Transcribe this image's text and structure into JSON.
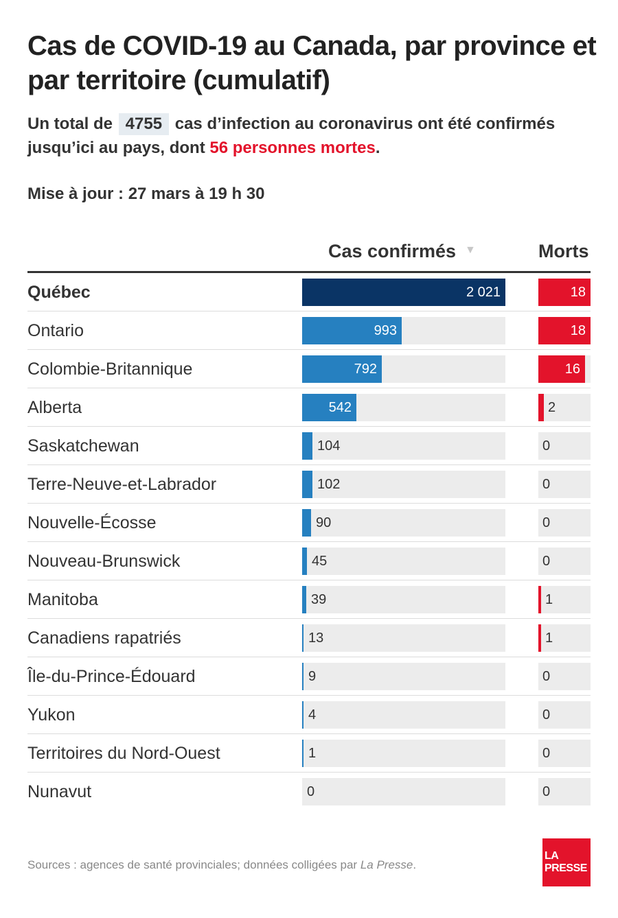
{
  "header": {
    "title": "Cas de COVID-19 au Canada, par province et par territoire (cumulatif)",
    "summary_prefix": "Un total de",
    "summary_total": "4755",
    "summary_middle": "cas d’infection au coronavirus ont été confirmés jusqu’ici au pays, dont",
    "summary_deaths": "56 personnes mortes",
    "summary_suffix": ".",
    "updated": "Mise à jour : 27 mars à 19 h 30"
  },
  "columns": {
    "cases": "Cas confirmés",
    "deaths": "Morts",
    "sort_indicator": "▼"
  },
  "footer": {
    "source_prefix": "Sources : agences de santé provinciales; données colligées par",
    "source_publisher": "La Presse",
    "source_suffix": ".",
    "logo_line1": "LA",
    "logo_line2": "PRESSE"
  },
  "colors": {
    "highlight_bar": "#0a3465",
    "cases_bar": "#2680c0",
    "deaths_bar": "#e3132b",
    "track": "#ececec"
  },
  "chart_data": {
    "type": "bar",
    "orientation": "horizontal",
    "title": "Cas de COVID-19 au Canada, par province et par territoire (cumulatif)",
    "categories": [
      "Québec",
      "Ontario",
      "Colombie-Britannique",
      "Alberta",
      "Saskatchewan",
      "Terre-Neuve-et-Labrador",
      "Nouvelle-Écosse",
      "Nouveau-Brunswick",
      "Manitoba",
      "Canadiens rapatriés",
      "Île-du-Prince-Édouard",
      "Yukon",
      "Territoires du Nord-Ouest",
      "Nunavut"
    ],
    "highlight": "Québec",
    "series": [
      {
        "name": "Cas confirmés",
        "values": [
          2021,
          993,
          792,
          542,
          104,
          102,
          90,
          45,
          39,
          13,
          9,
          4,
          1,
          0
        ],
        "labels": [
          "2 021",
          "993",
          "792",
          "542",
          "104",
          "102",
          "90",
          "45",
          "39",
          "13",
          "9",
          "4",
          "1",
          "0"
        ],
        "xlim": [
          0,
          2021
        ]
      },
      {
        "name": "Morts",
        "values": [
          18,
          18,
          16,
          2,
          0,
          0,
          0,
          0,
          1,
          1,
          0,
          0,
          0,
          0
        ],
        "labels": [
          "18",
          "18",
          "16",
          "2",
          "0",
          "0",
          "0",
          "0",
          "1",
          "1",
          "0",
          "0",
          "0",
          "0"
        ],
        "xlim": [
          0,
          18
        ]
      }
    ]
  }
}
